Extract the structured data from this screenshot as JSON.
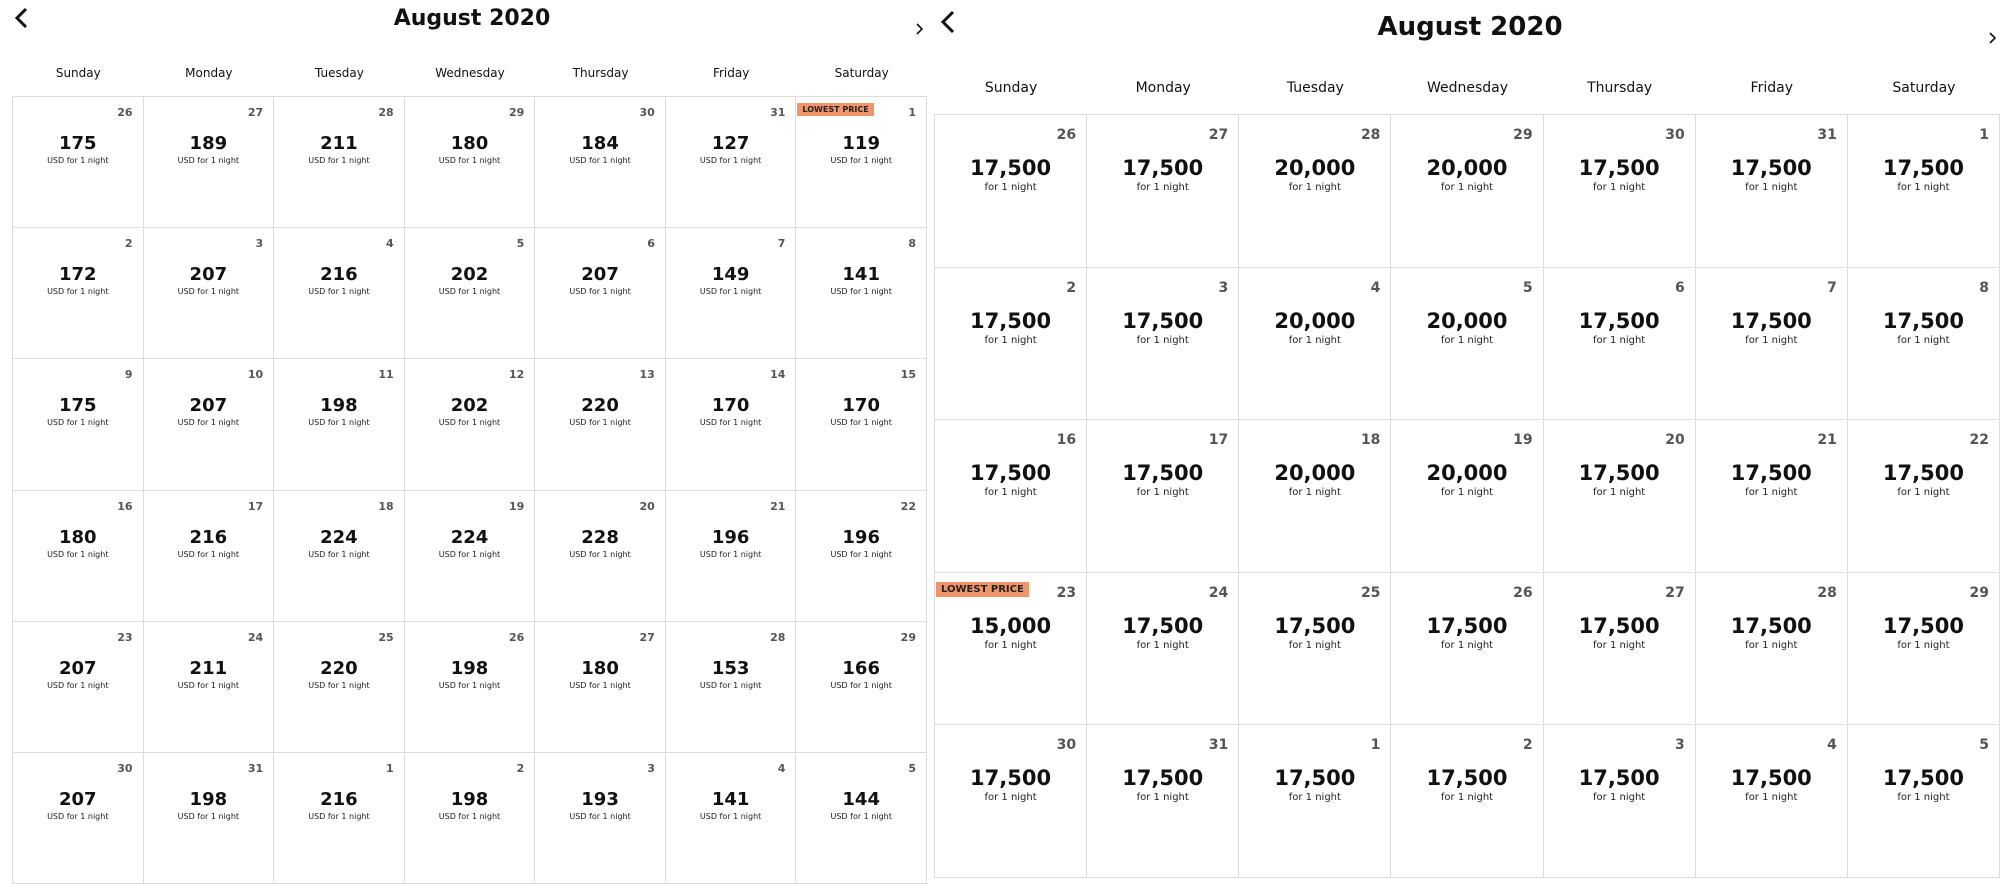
{
  "calendars": [
    {
      "title": "August 2020",
      "weekdays": [
        "Sunday",
        "Monday",
        "Tuesday",
        "Wednesday",
        "Thursday",
        "Friday",
        "Saturday"
      ],
      "weeks": [
        [
          {
            "day": 26,
            "price": "175",
            "note": "USD for 1 night"
          },
          {
            "day": 27,
            "price": "189",
            "note": "USD for 1 night"
          },
          {
            "day": 28,
            "price": "211",
            "note": "USD for 1 night"
          },
          {
            "day": 29,
            "price": "180",
            "note": "USD for 1 night"
          },
          {
            "day": 30,
            "price": "184",
            "note": "USD for 1 night"
          },
          {
            "day": 31,
            "price": "127",
            "note": "USD for 1 night"
          },
          {
            "day": 1,
            "price": "119",
            "note": "USD for 1 night",
            "badge": "LOWEST PRICE"
          }
        ],
        [
          {
            "day": 2,
            "price": "172",
            "note": "USD for 1 night"
          },
          {
            "day": 3,
            "price": "207",
            "note": "USD for 1 night"
          },
          {
            "day": 4,
            "price": "216",
            "note": "USD for 1 night"
          },
          {
            "day": 5,
            "price": "202",
            "note": "USD for 1 night"
          },
          {
            "day": 6,
            "price": "207",
            "note": "USD for 1 night"
          },
          {
            "day": 7,
            "price": "149",
            "note": "USD for 1 night"
          },
          {
            "day": 8,
            "price": "141",
            "note": "USD for 1 night"
          }
        ],
        [
          {
            "day": 9,
            "price": "175",
            "note": "USD for 1 night"
          },
          {
            "day": 10,
            "price": "207",
            "note": "USD for 1 night"
          },
          {
            "day": 11,
            "price": "198",
            "note": "USD for 1 night"
          },
          {
            "day": 12,
            "price": "202",
            "note": "USD for 1 night"
          },
          {
            "day": 13,
            "price": "220",
            "note": "USD for 1 night"
          },
          {
            "day": 14,
            "price": "170",
            "note": "USD for 1 night"
          },
          {
            "day": 15,
            "price": "170",
            "note": "USD for 1 night"
          }
        ],
        [
          {
            "day": 16,
            "price": "180",
            "note": "USD for 1 night"
          },
          {
            "day": 17,
            "price": "216",
            "note": "USD for 1 night"
          },
          {
            "day": 18,
            "price": "224",
            "note": "USD for 1 night"
          },
          {
            "day": 19,
            "price": "224",
            "note": "USD for 1 night"
          },
          {
            "day": 20,
            "price": "228",
            "note": "USD for 1 night"
          },
          {
            "day": 21,
            "price": "196",
            "note": "USD for 1 night"
          },
          {
            "day": 22,
            "price": "196",
            "note": "USD for 1 night"
          }
        ],
        [
          {
            "day": 23,
            "price": "207",
            "note": "USD for 1 night"
          },
          {
            "day": 24,
            "price": "211",
            "note": "USD for 1 night"
          },
          {
            "day": 25,
            "price": "220",
            "note": "USD for 1 night"
          },
          {
            "day": 26,
            "price": "198",
            "note": "USD for 1 night"
          },
          {
            "day": 27,
            "price": "180",
            "note": "USD for 1 night"
          },
          {
            "day": 28,
            "price": "153",
            "note": "USD for 1 night"
          },
          {
            "day": 29,
            "price": "166",
            "note": "USD for 1 night"
          }
        ],
        [
          {
            "day": 30,
            "price": "207",
            "note": "USD for 1 night"
          },
          {
            "day": 31,
            "price": "198",
            "note": "USD for 1 night"
          },
          {
            "day": 1,
            "price": "216",
            "note": "USD for 1 night"
          },
          {
            "day": 2,
            "price": "198",
            "note": "USD for 1 night"
          },
          {
            "day": 3,
            "price": "193",
            "note": "USD for 1 night"
          },
          {
            "day": 4,
            "price": "141",
            "note": "USD for 1 night"
          },
          {
            "day": 5,
            "price": "144",
            "note": "USD for 1 night"
          }
        ]
      ]
    },
    {
      "title": "August 2020",
      "weekdays": [
        "Sunday",
        "Monday",
        "Tuesday",
        "Wednesday",
        "Thursday",
        "Friday",
        "Saturday"
      ],
      "weeks": [
        [
          {
            "day": 26,
            "price": "17,500",
            "note": "for 1 night"
          },
          {
            "day": 27,
            "price": "17,500",
            "note": "for 1 night"
          },
          {
            "day": 28,
            "price": "20,000",
            "note": "for 1 night"
          },
          {
            "day": 29,
            "price": "20,000",
            "note": "for 1 night"
          },
          {
            "day": 30,
            "price": "17,500",
            "note": "for 1 night"
          },
          {
            "day": 31,
            "price": "17,500",
            "note": "for 1 night"
          },
          {
            "day": 1,
            "price": "17,500",
            "note": "for 1 night"
          }
        ],
        [
          {
            "day": 2,
            "price": "17,500",
            "note": "for 1 night"
          },
          {
            "day": 3,
            "price": "17,500",
            "note": "for 1 night"
          },
          {
            "day": 4,
            "price": "20,000",
            "note": "for 1 night"
          },
          {
            "day": 5,
            "price": "20,000",
            "note": "for 1 night"
          },
          {
            "day": 6,
            "price": "17,500",
            "note": "for 1 night"
          },
          {
            "day": 7,
            "price": "17,500",
            "note": "for 1 night"
          },
          {
            "day": 8,
            "price": "17,500",
            "note": "for 1 night"
          }
        ],
        [
          {
            "day": 16,
            "price": "17,500",
            "note": "for 1 night"
          },
          {
            "day": 17,
            "price": "17,500",
            "note": "for 1 night"
          },
          {
            "day": 18,
            "price": "20,000",
            "note": "for 1 night"
          },
          {
            "day": 19,
            "price": "20,000",
            "note": "for 1 night"
          },
          {
            "day": 20,
            "price": "17,500",
            "note": "for 1 night"
          },
          {
            "day": 21,
            "price": "17,500",
            "note": "for 1 night"
          },
          {
            "day": 22,
            "price": "17,500",
            "note": "for 1 night"
          }
        ],
        [
          {
            "day": 23,
            "price": "15,000",
            "note": "for 1 night",
            "badge": "LOWEST PRICE"
          },
          {
            "day": 24,
            "price": "17,500",
            "note": "for 1 night"
          },
          {
            "day": 25,
            "price": "17,500",
            "note": "for 1 night"
          },
          {
            "day": 26,
            "price": "17,500",
            "note": "for 1 night"
          },
          {
            "day": 27,
            "price": "17,500",
            "note": "for 1 night"
          },
          {
            "day": 28,
            "price": "17,500",
            "note": "for 1 night"
          },
          {
            "day": 29,
            "price": "17,500",
            "note": "for 1 night"
          }
        ],
        [
          {
            "day": 30,
            "price": "17,500",
            "note": "for 1 night"
          },
          {
            "day": 31,
            "price": "17,500",
            "note": "for 1 night"
          },
          {
            "day": 1,
            "price": "17,500",
            "note": "for 1 night"
          },
          {
            "day": 2,
            "price": "17,500",
            "note": "for 1 night"
          },
          {
            "day": 3,
            "price": "17,500",
            "note": "for 1 night"
          },
          {
            "day": 4,
            "price": "17,500",
            "note": "for 1 night"
          },
          {
            "day": 5,
            "price": "17,500",
            "note": "for 1 night"
          }
        ]
      ]
    }
  ]
}
